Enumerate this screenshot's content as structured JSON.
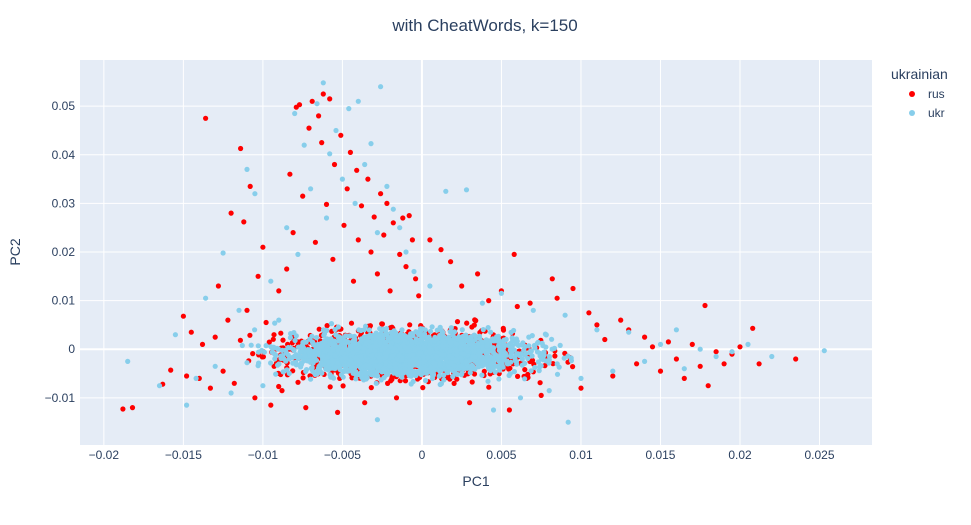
{
  "chart_data": {
    "type": "scatter",
    "title": "with CheatWords, k=150",
    "xlabel": "PC1",
    "ylabel": "PC2",
    "xlim": [
      -0.0215,
      0.0283
    ],
    "ylim": [
      -0.0197,
      0.0595
    ],
    "x_ticks": [
      -0.02,
      -0.015,
      -0.01,
      -0.005,
      0,
      0.005,
      0.01,
      0.015,
      0.02,
      0.025
    ],
    "x_tick_labels": [
      "−0.02",
      "−0.015",
      "−0.01",
      "−0.005",
      "0",
      "0.005",
      "0.01",
      "0.015",
      "0.02",
      "0.025"
    ],
    "y_ticks": [
      -0.01,
      0,
      0.01,
      0.02,
      0.03,
      0.04,
      0.05
    ],
    "y_tick_labels": [
      "−0.01",
      "0",
      "0.01",
      "0.02",
      "0.03",
      "0.04",
      "0.05"
    ],
    "grid": true,
    "legend": {
      "title": "ukrainian",
      "position": "top-right"
    },
    "series": [
      {
        "name": "rus",
        "color": "#ff0000",
        "points": [
          [
            -0.0188,
            -0.0123
          ],
          [
            -0.0182,
            -0.012
          ],
          [
            -0.0163,
            -0.0072
          ],
          [
            -0.0158,
            -0.0043
          ],
          [
            -0.015,
            0.0068
          ],
          [
            -0.0148,
            -0.0055
          ],
          [
            -0.0145,
            0.0035
          ],
          [
            -0.014,
            -0.006
          ],
          [
            -0.0138,
            0.001
          ],
          [
            -0.0136,
            0.0475
          ],
          [
            -0.0133,
            -0.008
          ],
          [
            -0.013,
            0.0025
          ],
          [
            -0.0128,
            0.013
          ],
          [
            -0.0125,
            -0.0045
          ],
          [
            -0.0122,
            0.006
          ],
          [
            -0.012,
            0.028
          ],
          [
            -0.0118,
            -0.007
          ],
          [
            -0.0114,
            0.0413
          ],
          [
            -0.0112,
            0.0262
          ],
          [
            -0.011,
            0.008
          ],
          [
            -0.0108,
            0.0335
          ],
          [
            -0.0105,
            -0.01
          ],
          [
            -0.0103,
            0.015
          ],
          [
            -0.01,
            0.021
          ],
          [
            -0.0098,
            0.0055
          ],
          [
            -0.0095,
            -0.0115
          ],
          [
            -0.0093,
            0.003
          ],
          [
            -0.009,
            0.012
          ],
          [
            -0.0088,
            -0.0085
          ],
          [
            -0.0085,
            0.0165
          ],
          [
            -0.0083,
            0.036
          ],
          [
            -0.0081,
            0.024
          ],
          [
            -0.0079,
            0.0498
          ],
          [
            -0.0077,
            0.0503
          ],
          [
            -0.0075,
            0.0315
          ],
          [
            -0.0073,
            -0.012
          ],
          [
            -0.0071,
            0.0455
          ],
          [
            -0.0069,
            0.051
          ],
          [
            -0.0067,
            0.022
          ],
          [
            -0.0065,
            0.048
          ],
          [
            -0.0063,
            0.0425
          ],
          [
            -0.0062,
            0.0525
          ],
          [
            -0.006,
            0.0298
          ],
          [
            -0.0058,
            0.0515
          ],
          [
            -0.0056,
            0.0185
          ],
          [
            -0.0055,
            0.038
          ],
          [
            -0.0053,
            -0.013
          ],
          [
            -0.0051,
            0.044
          ],
          [
            -0.0049,
            0.0255
          ],
          [
            -0.0047,
            0.033
          ],
          [
            -0.0045,
            0.0405
          ],
          [
            -0.0043,
            0.014
          ],
          [
            -0.0041,
            0.0368
          ],
          [
            -0.004,
            0.0225
          ],
          [
            -0.0038,
            0.0295
          ],
          [
            -0.0036,
            -0.011
          ],
          [
            -0.0034,
            0.035
          ],
          [
            -0.0032,
            0.02
          ],
          [
            -0.003,
            0.0272
          ],
          [
            -0.0028,
            0.0155
          ],
          [
            -0.0026,
            0.032
          ],
          [
            -0.0024,
            0.0235
          ],
          [
            -0.0022,
            0.03
          ],
          [
            -0.002,
            0.012
          ],
          [
            -0.0018,
            0.026
          ],
          [
            -0.0016,
            -0.01
          ],
          [
            -0.0014,
            0.0195
          ],
          [
            -0.0012,
            0.027
          ],
          [
            -0.001,
            0.017
          ],
          [
            -0.0008,
            0.0275
          ],
          [
            -0.0006,
            0.0225
          ],
          [
            -0.0004,
            0.0145
          ],
          [
            -0.0002,
            0.011
          ],
          [
            0.0005,
            0.0225
          ],
          [
            0.0012,
            0.0205
          ],
          [
            0.0018,
            0.018
          ],
          [
            0.0025,
            0.013
          ],
          [
            0.003,
            -0.011
          ],
          [
            0.0035,
            0.0155
          ],
          [
            0.0042,
            0.01
          ],
          [
            0.005,
            0.012
          ],
          [
            0.0055,
            -0.0125
          ],
          [
            0.006,
            0.0088
          ],
          [
            0.0058,
            0.0195
          ],
          [
            0.0068,
            0.0095
          ],
          [
            0.0075,
            -0.0095
          ],
          [
            0.0082,
            0.0145
          ],
          [
            0.0085,
            0.0105
          ],
          [
            0.0095,
            0.0125
          ],
          [
            0.01,
            -0.008
          ],
          [
            0.0105,
            0.0075
          ],
          [
            0.011,
            0.005
          ],
          [
            0.0115,
            0.002
          ],
          [
            0.012,
            -0.0055
          ],
          [
            0.0125,
            0.006
          ],
          [
            0.013,
            0.004
          ],
          [
            0.0135,
            -0.003
          ],
          [
            0.014,
            0.0025
          ],
          [
            0.0145,
            0.0005
          ],
          [
            0.015,
            -0.0045
          ],
          [
            0.0155,
            0.0015
          ],
          [
            0.016,
            -0.002
          ],
          [
            0.0165,
            -0.006
          ],
          [
            0.017,
            0.001
          ],
          [
            0.0175,
            -0.0035
          ],
          [
            0.0178,
            0.009
          ],
          [
            0.018,
            -0.0075
          ],
          [
            0.0185,
            -0.0005
          ],
          [
            0.019,
            -0.003
          ],
          [
            0.0195,
            -0.001
          ],
          [
            0.02,
            0.0005
          ],
          [
            0.0208,
            0.0043
          ],
          [
            0.0212,
            -0.003
          ],
          [
            0.0235,
            -0.002
          ]
        ],
        "core": {
          "center": [
            -0.001,
            -0.001
          ],
          "spread": [
            0.0075,
            0.0046
          ],
          "count": 1300
        }
      },
      {
        "name": "ukr",
        "color": "#87ceeb",
        "points": [
          [
            -0.0185,
            -0.0025
          ],
          [
            -0.0165,
            -0.0075
          ],
          [
            -0.0155,
            0.003
          ],
          [
            -0.0148,
            -0.0115
          ],
          [
            -0.0142,
            -0.006
          ],
          [
            -0.0136,
            0.0105
          ],
          [
            -0.013,
            -0.0035
          ],
          [
            -0.0125,
            0.0198
          ],
          [
            -0.012,
            -0.009
          ],
          [
            -0.0115,
            0.008
          ],
          [
            -0.011,
            0.037
          ],
          [
            -0.0105,
            0.032
          ],
          [
            -0.01,
            -0.0075
          ],
          [
            -0.0095,
            0.014
          ],
          [
            -0.009,
            0.006
          ],
          [
            -0.0085,
            0.025
          ],
          [
            -0.008,
            0.0485
          ],
          [
            -0.0078,
            0.0195
          ],
          [
            -0.0074,
            0.042
          ],
          [
            -0.007,
            0.033
          ],
          [
            -0.0066,
            0.0505
          ],
          [
            -0.0062,
            0.0548
          ],
          [
            -0.006,
            0.027
          ],
          [
            -0.0058,
            0.0402
          ],
          [
            -0.0054,
            0.045
          ],
          [
            -0.005,
            0.035
          ],
          [
            -0.0046,
            0.0495
          ],
          [
            -0.0042,
            0.03
          ],
          [
            -0.004,
            0.051
          ],
          [
            -0.0036,
            0.038
          ],
          [
            -0.0032,
            0.0423
          ],
          [
            -0.0028,
            0.024
          ],
          [
            -0.0026,
            0.054
          ],
          [
            -0.0022,
            0.0335
          ],
          [
            -0.0018,
            0.0288
          ],
          [
            -0.0014,
            0.025
          ],
          [
            -0.001,
            0.02
          ],
          [
            -0.0005,
            0.016
          ],
          [
            0.0005,
            0.013
          ],
          [
            0.0015,
            0.0325
          ],
          [
            0.0028,
            0.0328
          ],
          [
            0.0038,
            0.0095
          ],
          [
            0.005,
            0.0115
          ],
          [
            0.0062,
            -0.01
          ],
          [
            0.007,
            0.008
          ],
          [
            0.008,
            -0.0085
          ],
          [
            0.009,
            0.007
          ],
          [
            0.01,
            -0.006
          ],
          [
            0.011,
            0.004
          ],
          [
            0.012,
            -0.0045
          ],
          [
            0.013,
            0.0035
          ],
          [
            0.014,
            -0.0025
          ],
          [
            0.015,
            0.001
          ],
          [
            0.016,
            0.004
          ],
          [
            0.0165,
            -0.004
          ],
          [
            0.0175,
            0.0
          ],
          [
            0.0185,
            -0.0015
          ],
          [
            0.0195,
            -0.0005
          ],
          [
            0.0205,
            0.001
          ],
          [
            0.022,
            -0.0015
          ],
          [
            0.0253,
            -0.0003
          ],
          [
            0.0092,
            -0.015
          ],
          [
            -0.0028,
            -0.0145
          ],
          [
            0.0045,
            -0.0125
          ]
        ],
        "core": {
          "center": [
            -0.001,
            -0.001
          ],
          "spread": [
            0.007,
            0.004
          ],
          "count": 2400
        }
      }
    ]
  }
}
